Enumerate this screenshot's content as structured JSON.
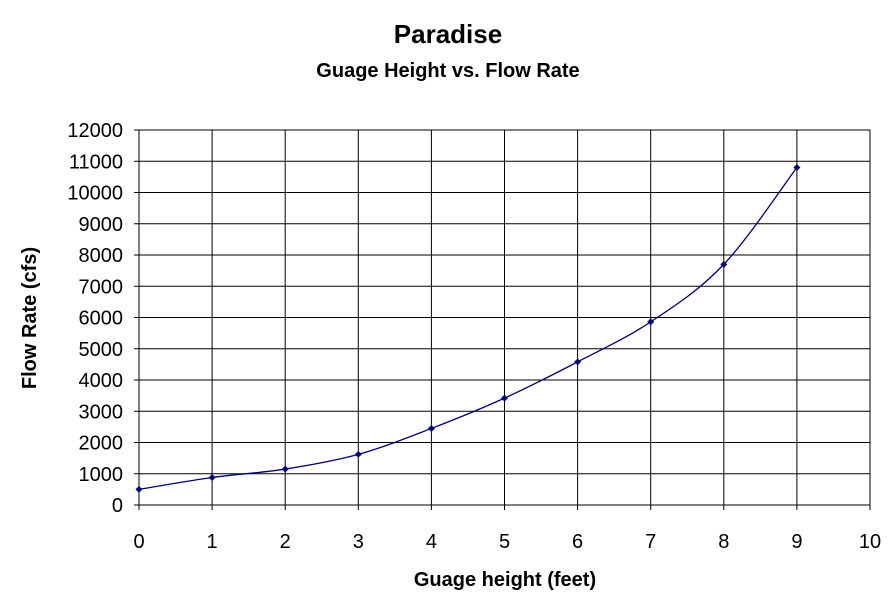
{
  "chart_data": {
    "type": "scatter",
    "title": "Paradise",
    "subtitle": "Guage Height vs. Flow Rate",
    "xlabel": "Guage height (feet)",
    "ylabel": "Flow Rate (cfs)",
    "xlim": [
      0,
      10
    ],
    "ylim": [
      0,
      12000
    ],
    "xticks": [
      0,
      1,
      2,
      3,
      4,
      5,
      6,
      7,
      8,
      9,
      10
    ],
    "yticks": [
      0,
      1000,
      2000,
      3000,
      4000,
      5000,
      6000,
      7000,
      8000,
      9000,
      10000,
      11000,
      12000
    ],
    "grid": true,
    "smooth_line": true,
    "series_color": "#000080",
    "series": [
      {
        "x": [
          0,
          1,
          2,
          3,
          4,
          5,
          6,
          7,
          8,
          9
        ],
        "y": [
          500,
          880,
          1150,
          1620,
          2450,
          3420,
          4580,
          5860,
          7700,
          10800
        ]
      }
    ]
  }
}
